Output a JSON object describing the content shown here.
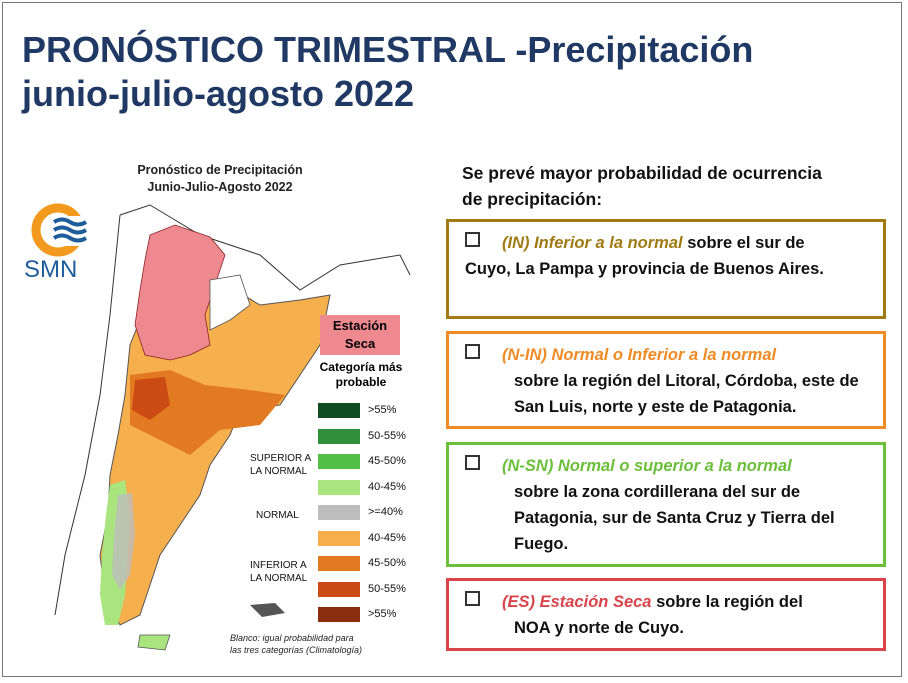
{
  "header": {
    "title_line1": "PRONÓSTICO TRIMESTRAL -Precipitación",
    "title_line2": "junio-julio-agosto 2022"
  },
  "map_panel": {
    "title_line1": "Pronóstico de Precipitación",
    "title_line2": "Junio-Julio-Agosto 2022",
    "logo_text": "SMN",
    "seca_label_line1": "Estación",
    "seca_label_line2": "Seca",
    "category_head_line1": "Categoría más",
    "category_head_line2": "probable",
    "legend": [
      {
        "label": ">55%",
        "color": "#0f4d22"
      },
      {
        "label": "50-55%",
        "color": "#2f8f3a"
      },
      {
        "label": "45-50%",
        "color": "#52c046"
      },
      {
        "label": "40-45%",
        "color": "#a9e47f"
      },
      {
        "label": ">=40%",
        "color": "#bdbdbd"
      },
      {
        "label": "40-45%",
        "color": "#f5b04d"
      },
      {
        "label": "45-50%",
        "color": "#e27a22"
      },
      {
        "label": "50-55%",
        "color": "#cc4a14"
      },
      {
        "label": ">55%",
        "color": "#8a2d0c"
      }
    ],
    "group_superior_line1": "SUPERIOR A",
    "group_superior_line2": "LA NORMAL",
    "group_normal": "NORMAL",
    "group_inferior_line1": "INFERIOR A",
    "group_inferior_line2": "LA NORMAL",
    "footnote_line1": "Blanco: igual probabilidad para",
    "footnote_line2": "las tres categorías (Climatología)"
  },
  "forecast": {
    "intro_line1": "Se prevé mayor probabilidad de ocurrencia",
    "intro_line2": "de precipitación:",
    "items": [
      {
        "tag": "(IN) Inferior a la normal",
        "text_first": " sobre el sur de",
        "text_rest": "Cuyo, La Pampa y provincia de Buenos Aires.",
        "color": "#a07a12"
      },
      {
        "tag": "(N-IN) Normal o Inferior a la normal",
        "text_first": "",
        "text_rest": "sobre la región del Litoral, Córdoba, este de San Luis, norte y este de Patagonia.",
        "color": "#f08a24"
      },
      {
        "tag": "(N-SN) Normal o superior a la normal",
        "text_first": "",
        "text_rest": "sobre la zona cordillerana del sur de Patagonia, sur de Santa Cruz y Tierra del Fuego.",
        "color": "#6bbf3a"
      },
      {
        "tag": "(ES) Estación Seca",
        "text_first": "  sobre la región del",
        "text_rest": "NOA y norte de Cuyo.",
        "color": "#d9434a"
      }
    ]
  }
}
